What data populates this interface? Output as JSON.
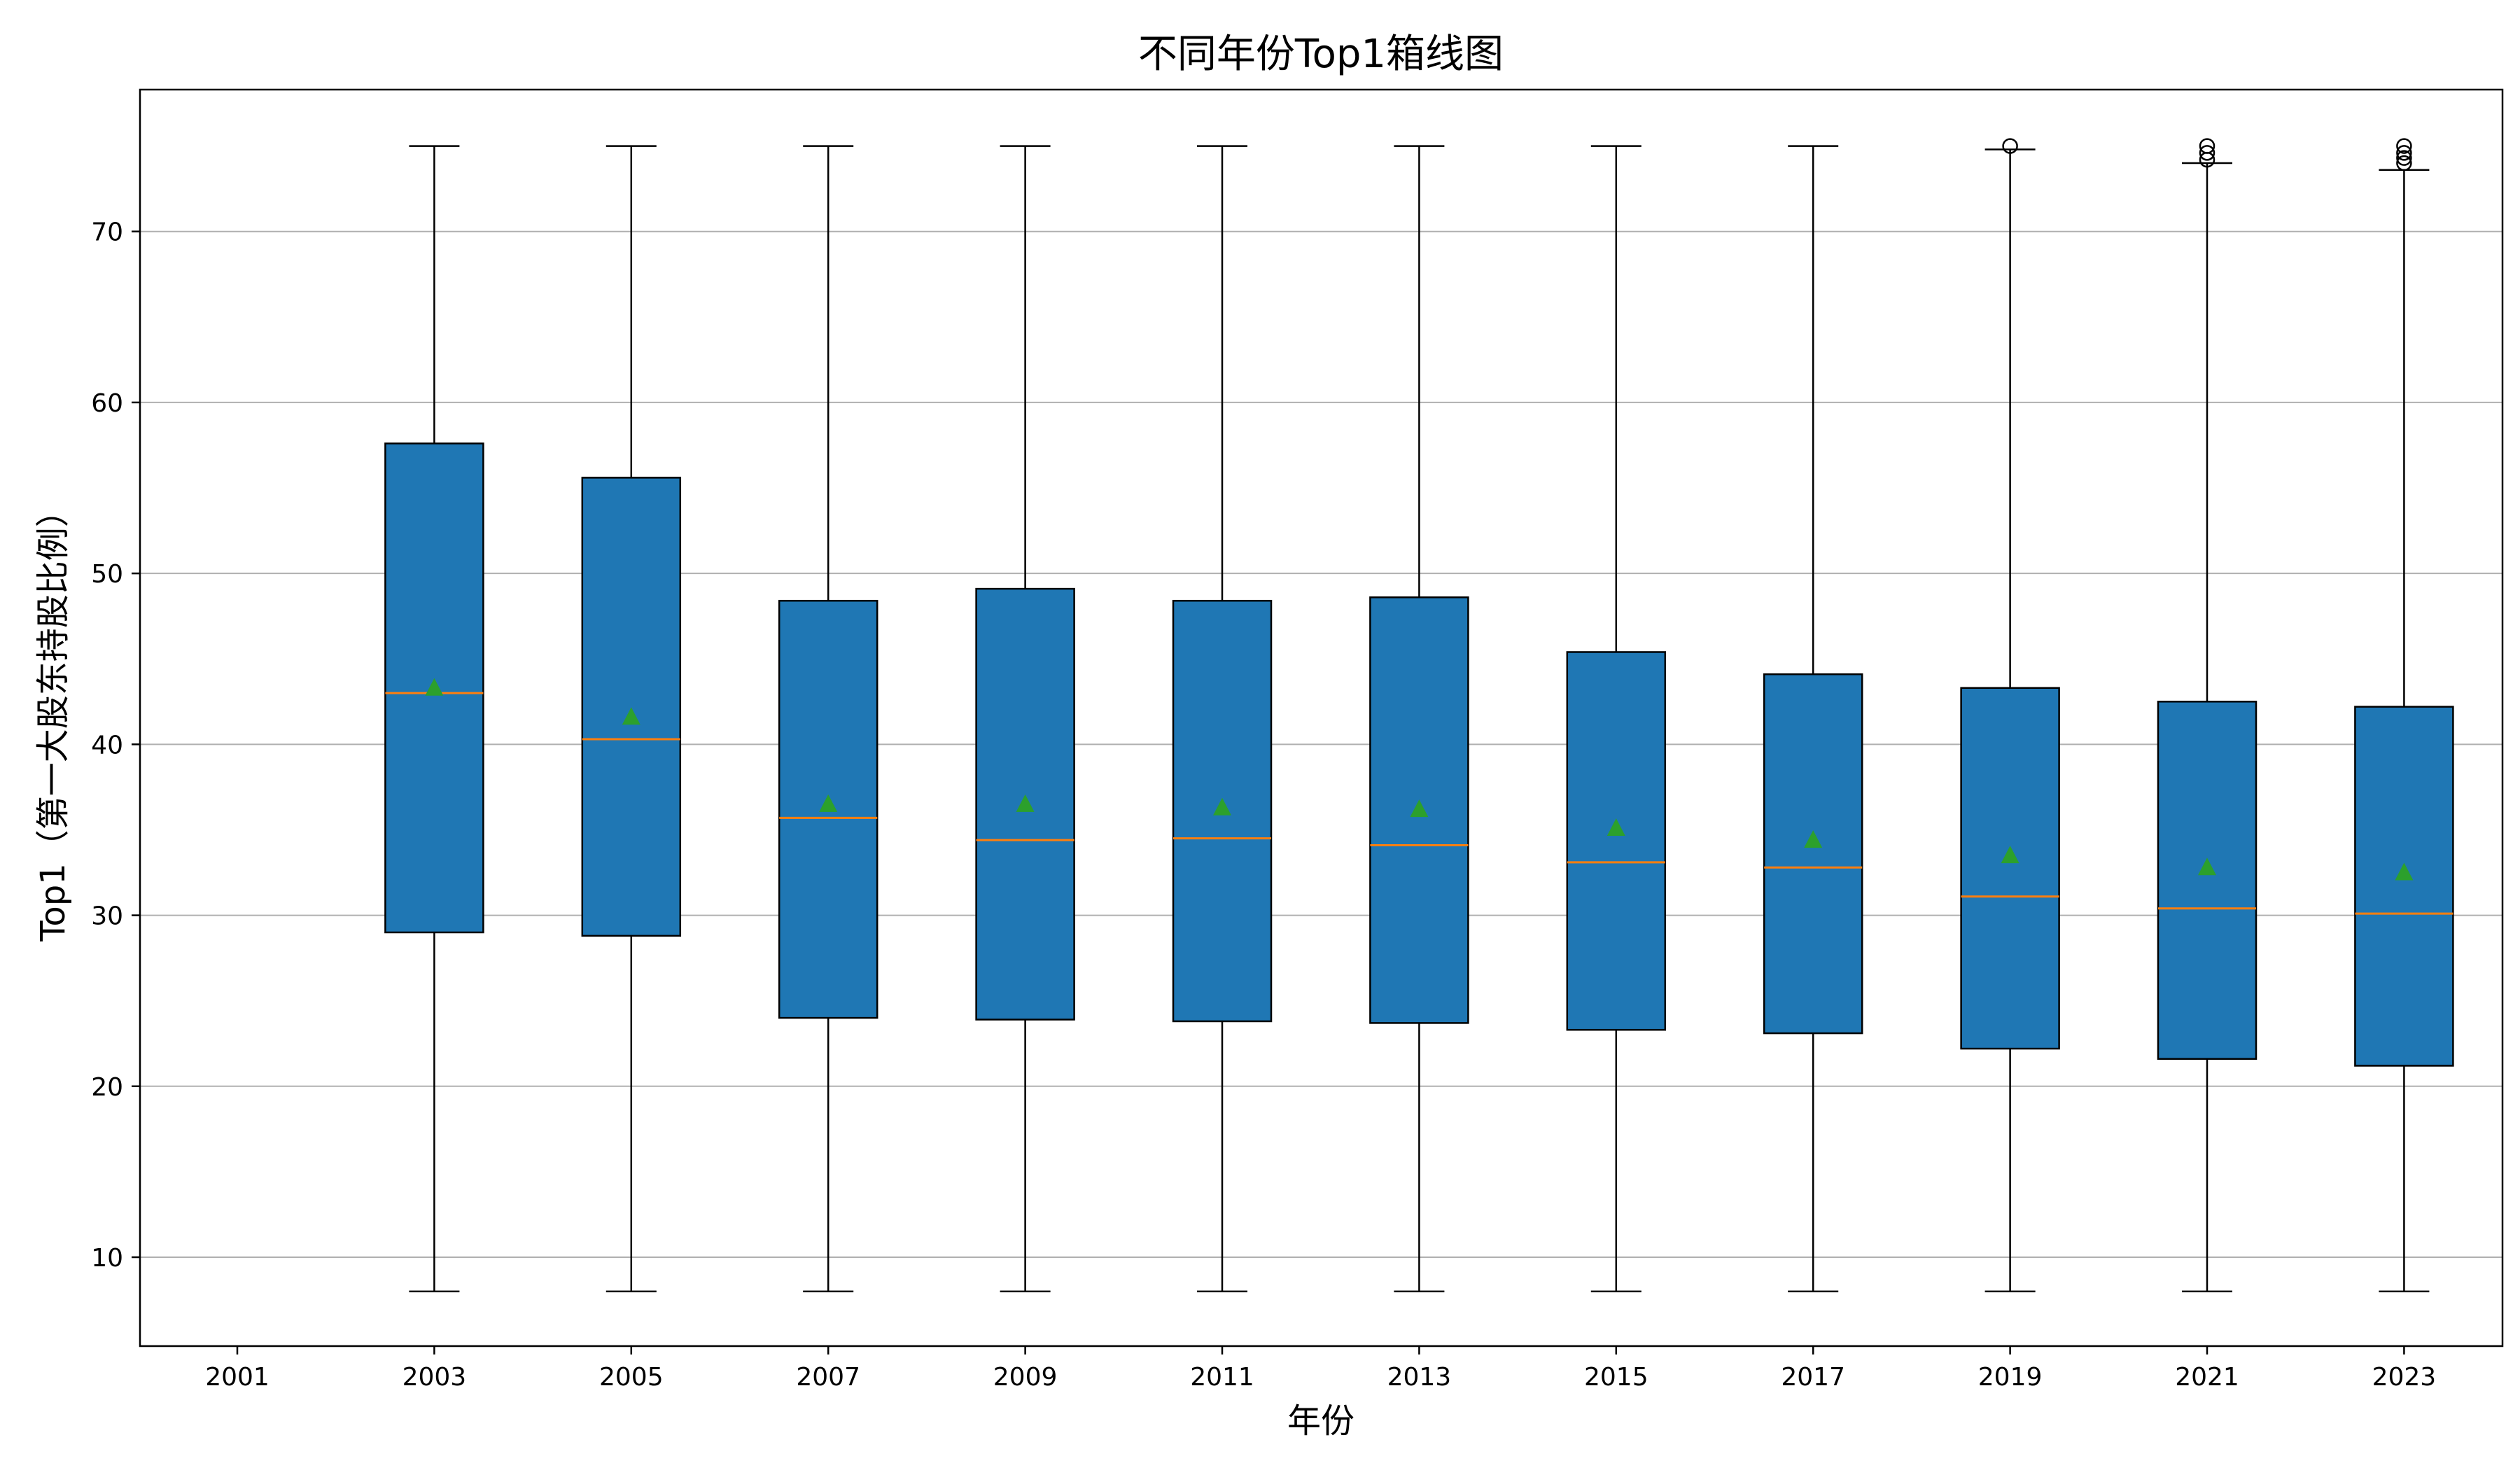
{
  "chart_data": {
    "type": "box",
    "title": "不同年份Top1箱线图",
    "xlabel": "年份",
    "ylabel": "Top1（第一大股东持股比例）",
    "ylim": [
      4.8,
      78.3
    ],
    "yticks": [
      10,
      20,
      30,
      40,
      50,
      60,
      70
    ],
    "grid": "y",
    "categories": [
      "2001",
      "2003",
      "2005",
      "2007",
      "2009",
      "2011",
      "2013",
      "2015",
      "2017",
      "2019",
      "2021",
      "2023"
    ],
    "boxes": [
      {
        "year": "2001",
        "empty": true
      },
      {
        "year": "2003",
        "whisker_low": 8,
        "q1": 29.0,
        "median": 43.0,
        "q3": 57.6,
        "whisker_high": 75,
        "mean": 43.3,
        "outliers": []
      },
      {
        "year": "2005",
        "whisker_low": 8,
        "q1": 28.8,
        "median": 40.3,
        "q3": 55.6,
        "whisker_high": 75,
        "mean": 41.6,
        "outliers": []
      },
      {
        "year": "2007",
        "whisker_low": 8,
        "q1": 24.0,
        "median": 35.7,
        "q3": 48.4,
        "whisker_high": 75,
        "mean": 36.5,
        "outliers": []
      },
      {
        "year": "2009",
        "whisker_low": 8,
        "q1": 23.9,
        "median": 34.4,
        "q3": 49.1,
        "whisker_high": 75,
        "mean": 36.5,
        "outliers": []
      },
      {
        "year": "2011",
        "whisker_low": 8,
        "q1": 23.8,
        "median": 34.5,
        "q3": 48.4,
        "whisker_high": 75,
        "mean": 36.3,
        "outliers": []
      },
      {
        "year": "2013",
        "whisker_low": 8,
        "q1": 23.7,
        "median": 34.1,
        "q3": 48.6,
        "whisker_high": 75,
        "mean": 36.2,
        "outliers": []
      },
      {
        "year": "2015",
        "whisker_low": 8,
        "q1": 23.3,
        "median": 33.1,
        "q3": 45.4,
        "whisker_high": 75,
        "mean": 35.1,
        "outliers": []
      },
      {
        "year": "2017",
        "whisker_low": 8,
        "q1": 23.1,
        "median": 32.8,
        "q3": 44.1,
        "whisker_high": 75,
        "mean": 34.4,
        "outliers": []
      },
      {
        "year": "2019",
        "whisker_low": 8,
        "q1": 22.2,
        "median": 31.1,
        "q3": 43.3,
        "whisker_high": 74.8,
        "mean": 33.5,
        "outliers": [
          75.0
        ]
      },
      {
        "year": "2021",
        "whisker_low": 8,
        "q1": 21.6,
        "median": 30.4,
        "q3": 42.5,
        "whisker_high": 74.0,
        "mean": 32.8,
        "outliers": [
          74.2,
          74.6,
          75.0
        ]
      },
      {
        "year": "2023",
        "whisker_low": 8,
        "q1": 21.2,
        "median": 30.1,
        "q3": 42.2,
        "whisker_high": 73.6,
        "mean": 32.5,
        "outliers": [
          74.0,
          74.3,
          74.6,
          75.0
        ]
      }
    ],
    "colors": {
      "box_fill": "#1f77b4",
      "box_edge": "#000000",
      "median": "#ff7f0e",
      "mean_marker": "#2ca02c",
      "grid": "#b0b0b0"
    }
  }
}
